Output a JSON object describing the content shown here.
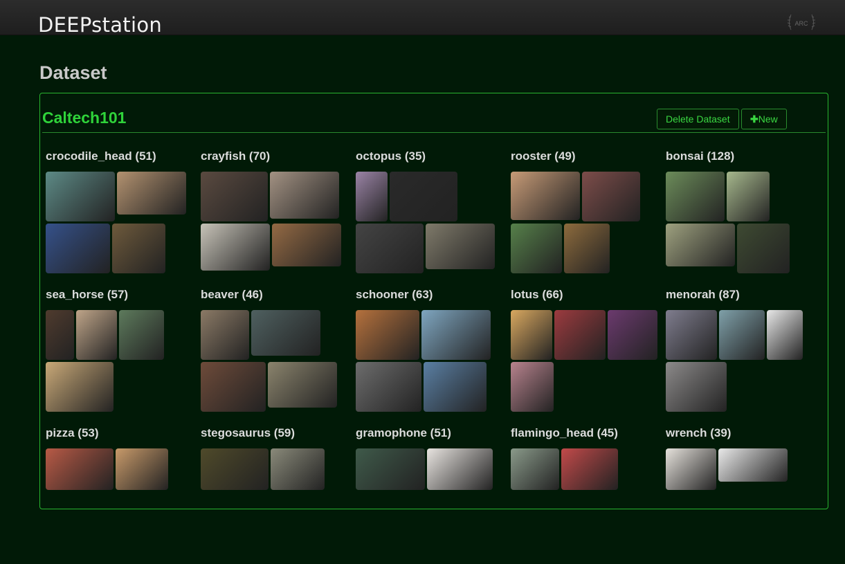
{
  "navbar": {
    "brand": "DEEPstation",
    "logo_icon": "laurel-logo-icon",
    "logo_text": "ARC"
  },
  "page": {
    "heading": "Dataset"
  },
  "dataset": {
    "name": "Caltech101",
    "delete_label": "Delete Dataset",
    "new_label": "New",
    "new_icon": "plus-icon",
    "categories": [
      {
        "label": "crocodile_head (51)",
        "thumbs": [
          {
            "w": 100,
            "h": 72,
            "c": "#5d8a86"
          },
          {
            "w": 100,
            "h": 62,
            "c": "#b39270"
          },
          {
            "w": 93,
            "h": 72,
            "c": "#35518a"
          },
          {
            "w": 77,
            "h": 72,
            "c": "#6e5a3c"
          }
        ]
      },
      {
        "label": "crayfish (70)",
        "thumbs": [
          {
            "w": 97,
            "h": 72,
            "c": "#5a4a40"
          },
          {
            "w": 100,
            "h": 68,
            "c": "#a39283"
          },
          {
            "w": 100,
            "h": 68,
            "c": "#c7c3b8"
          },
          {
            "w": 100,
            "h": 62,
            "c": "#946a44"
          }
        ]
      },
      {
        "label": "octopus (35)",
        "thumbs": [
          {
            "w": 46,
            "h": 72,
            "c": "#9b84a6"
          },
          {
            "w": 98,
            "h": 72,
            "c": "#2a2a2a"
          },
          {
            "w": 98,
            "h": 72,
            "c": "#444444"
          },
          {
            "w": 100,
            "h": 66,
            "c": "#7f7a6a"
          }
        ]
      },
      {
        "label": "rooster (49)",
        "thumbs": [
          {
            "w": 100,
            "h": 70,
            "c": "#c79b77"
          },
          {
            "w": 84,
            "h": 72,
            "c": "#7d4d4a"
          },
          {
            "w": 74,
            "h": 72,
            "c": "#56804a"
          },
          {
            "w": 66,
            "h": 72,
            "c": "#8d6b3d"
          }
        ]
      },
      {
        "label": "bonsai (128)",
        "thumbs": [
          {
            "w": 85,
            "h": 72,
            "c": "#6c8c5a"
          },
          {
            "w": 62,
            "h": 72,
            "c": "#a7b88d"
          },
          {
            "w": 100,
            "h": 62,
            "c": "#9ea17f"
          },
          {
            "w": 76,
            "h": 72,
            "c": "#3e4a32"
          }
        ]
      },
      {
        "label": "sea_horse (57)",
        "thumbs": [
          {
            "w": 41,
            "h": 72,
            "c": "#4f3b2e"
          },
          {
            "w": 59,
            "h": 72,
            "c": "#bfa589"
          },
          {
            "w": 65,
            "h": 72,
            "c": "#5d7a5c"
          },
          {
            "w": 98,
            "h": 72,
            "c": "#c9a978"
          }
        ]
      },
      {
        "label": "beaver (46)",
        "thumbs": [
          {
            "w": 70,
            "h": 72,
            "c": "#8b7a66"
          },
          {
            "w": 100,
            "h": 66,
            "c": "#4f6060"
          },
          {
            "w": 94,
            "h": 72,
            "c": "#6e4b3a"
          },
          {
            "w": 100,
            "h": 66,
            "c": "#8b846d"
          }
        ]
      },
      {
        "label": "schooner (63)",
        "thumbs": [
          {
            "w": 92,
            "h": 72,
            "c": "#b5713d"
          },
          {
            "w": 100,
            "h": 72,
            "c": "#7fa6c0"
          },
          {
            "w": 95,
            "h": 72,
            "c": "#6d6d6d"
          },
          {
            "w": 91,
            "h": 72,
            "c": "#5a7fa3"
          }
        ]
      },
      {
        "label": "lotus (66)",
        "thumbs": [
          {
            "w": 60,
            "h": 72,
            "c": "#d9a860"
          },
          {
            "w": 74,
            "h": 72,
            "c": "#9c3b3f"
          },
          {
            "w": 72,
            "h": 72,
            "c": "#6b3a6e"
          },
          {
            "w": 62,
            "h": 72,
            "c": "#b8838e"
          }
        ]
      },
      {
        "label": "menorah (87)",
        "thumbs": [
          {
            "w": 74,
            "h": 72,
            "c": "#7f7d8e"
          },
          {
            "w": 66,
            "h": 72,
            "c": "#7fa0a9"
          },
          {
            "w": 52,
            "h": 72,
            "c": "#e8e8e8"
          },
          {
            "w": 88,
            "h": 72,
            "c": "#8c8a8a"
          }
        ]
      },
      {
        "label": "pizza (53)",
        "thumbs": [
          {
            "w": 98,
            "h": 60,
            "c": "#b85a46"
          },
          {
            "w": 76,
            "h": 60,
            "c": "#c89a6a"
          }
        ]
      },
      {
        "label": "stegosaurus (59)",
        "thumbs": [
          {
            "w": 98,
            "h": 60,
            "c": "#4f4a2a"
          },
          {
            "w": 78,
            "h": 60,
            "c": "#8a8a7a"
          }
        ]
      },
      {
        "label": "gramophone (51)",
        "thumbs": [
          {
            "w": 100,
            "h": 60,
            "c": "#3f5a4a"
          },
          {
            "w": 95,
            "h": 60,
            "c": "#e8e4e0"
          }
        ]
      },
      {
        "label": "flamingo_head (45)",
        "thumbs": [
          {
            "w": 70,
            "h": 60,
            "c": "#8a9a8a"
          },
          {
            "w": 82,
            "h": 60,
            "c": "#c24a4a"
          }
        ]
      },
      {
        "label": "wrench (39)",
        "thumbs": [
          {
            "w": 73,
            "h": 60,
            "c": "#e6e2dc"
          },
          {
            "w": 100,
            "h": 48,
            "c": "#e9e9e9"
          }
        ]
      }
    ]
  }
}
